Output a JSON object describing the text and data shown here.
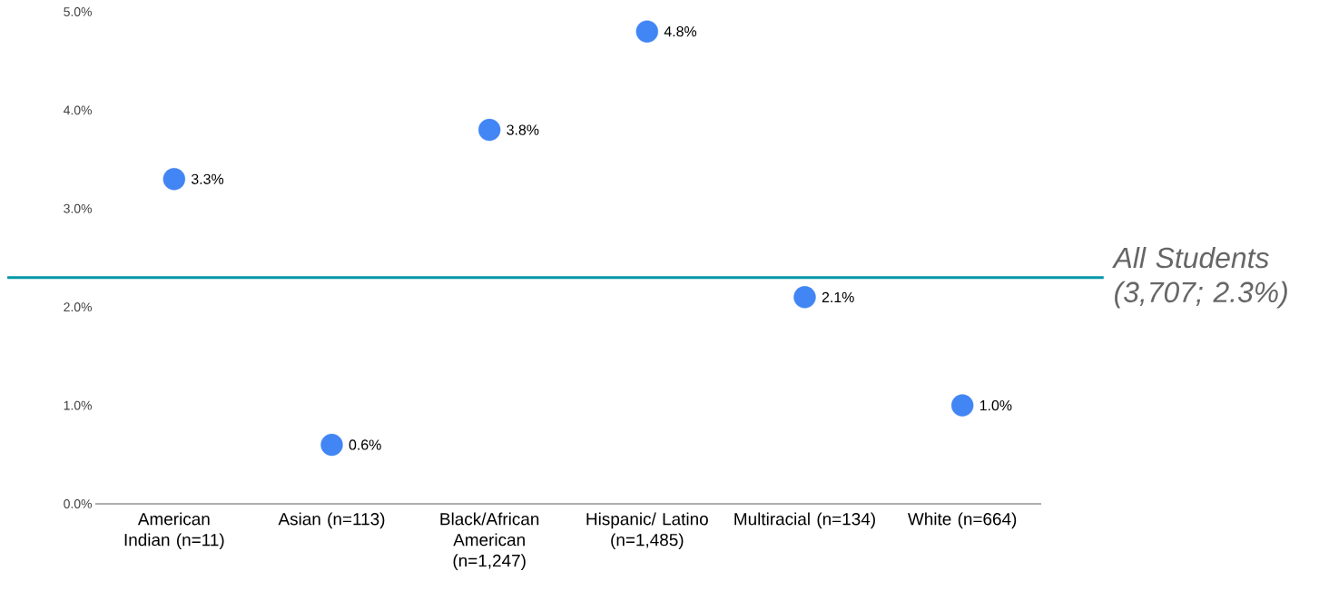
{
  "chart_data": {
    "type": "scatter",
    "categories": [
      "American Indian (n=11)",
      "Asian (n=113)",
      "Black/African American (n=1,247)",
      "Hispanic/ Latino (n=1,485)",
      "Multiracial (n=134)",
      "White (n=664)"
    ],
    "values": [
      3.3,
      0.6,
      3.8,
      4.8,
      2.1,
      1.0
    ],
    "value_labels": [
      "3.3%",
      "0.6%",
      "3.8%",
      "4.8%",
      "2.1%",
      "1.0%"
    ],
    "color": "#4285f4",
    "ylim": [
      0,
      5
    ],
    "yticks": [
      {
        "value": 0,
        "label": "0.0%"
      },
      {
        "value": 1,
        "label": "1.0%"
      },
      {
        "value": 2,
        "label": "2.0%"
      },
      {
        "value": 3,
        "label": "3.0%"
      },
      {
        "value": 4,
        "label": "4.0%"
      },
      {
        "value": 5,
        "label": "5.0%"
      }
    ],
    "ref_lines": [
      {
        "axis": "y",
        "value": 2.3,
        "label": "All Students (3,707; 2.3%)",
        "color": "#0097a7"
      }
    ]
  }
}
